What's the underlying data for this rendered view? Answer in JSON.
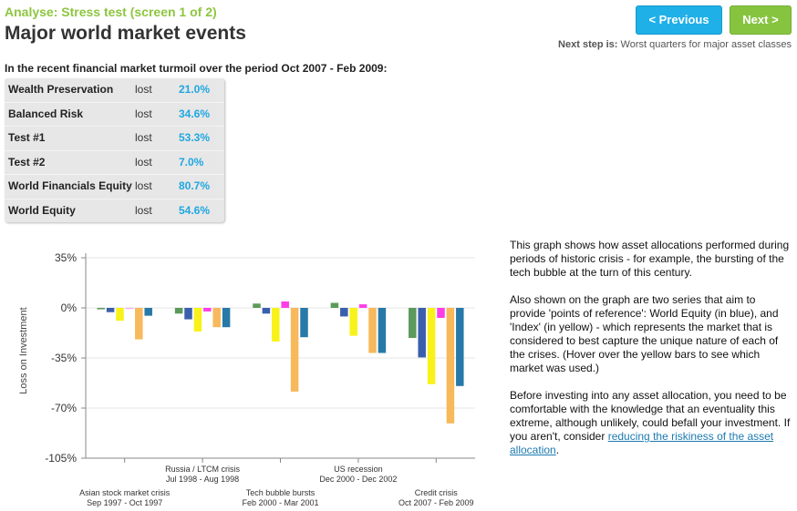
{
  "header": {
    "subtitle": "Analyse: Stress test (screen 1 of 2)",
    "title": "Major world market events"
  },
  "nav": {
    "prev_label": "< Previous",
    "next_label": "Next >",
    "next_step_label": "Next step is:",
    "next_step_value": "Worst quarters for major asset classes"
  },
  "intro": "In the recent financial market turmoil over the period Oct 2007 - Feb 2009:",
  "results": [
    {
      "name": "Wealth Preservation",
      "verb": "lost",
      "value": "21.0%"
    },
    {
      "name": "Balanced Risk",
      "verb": "lost",
      "value": "34.6%"
    },
    {
      "name": "Test #1",
      "verb": "lost",
      "value": "53.3%"
    },
    {
      "name": "Test #2",
      "verb": "lost",
      "value": "7.0%"
    },
    {
      "name": "World Financials Equity",
      "verb": "lost",
      "value": "80.7%"
    },
    {
      "name": "World Equity",
      "verb": "lost",
      "value": "54.6%"
    }
  ],
  "description": {
    "p1": "This graph shows how asset allocations performed during periods of historic crisis - for example, the bursting of the tech bubble at the turn of this century.",
    "p2": "Also shown on the graph are two series that aim to provide 'points of reference': World Equity (in blue), and 'Index' (in yellow) - which represents the market that is considered to best capture the unique nature of each of the crises. (Hover over the yellow bars to see which market was used.)",
    "p3_text": "Before investing into any asset allocation, you need to be comfortable with the knowledge that an eventuality this extreme, although unlikely, could befall your investment. If you aren't, consider",
    "p3_link": "reducing the riskiness of the asset allocation",
    "p3_end": "."
  },
  "chart_data": {
    "type": "bar",
    "ylabel": "Loss on Investment",
    "ylim": [
      -105,
      35
    ],
    "yticks": [
      35,
      0,
      -35,
      -70,
      -105
    ],
    "ytick_labels": [
      "35%",
      "0%",
      "-35%",
      "-70%",
      "-105%"
    ],
    "categories": [
      {
        "line1": "Asian stock market crisis",
        "line2": "Sep 1997 - Oct 1997"
      },
      {
        "line1": "Russia / LTCM crisis",
        "line2": "Jul 1998 - Aug 1998"
      },
      {
        "line1": "Tech bubble bursts",
        "line2": "Feb 2000 - Mar 2001"
      },
      {
        "line1": "US recession",
        "line2": "Dec 2000 - Dec 2002"
      },
      {
        "line1": "Credit crisis",
        "line2": "Oct 2007 - Feb 2009"
      }
    ],
    "series": [
      {
        "color": "#5b9a5a",
        "values": [
          -1,
          -4,
          3,
          3.5,
          -21
        ]
      },
      {
        "color": "#3a5fad",
        "values": [
          -3,
          -8,
          -4,
          -6,
          -34.6
        ]
      },
      {
        "color": "#f8f21a",
        "values": [
          -9,
          -16.5,
          -23.5,
          -19.5,
          -53.3
        ]
      },
      {
        "color": "#ff3ee8",
        "values": [
          0,
          -2.5,
          4.5,
          2.5,
          -7
        ]
      },
      {
        "color": "#f7b95c",
        "values": [
          -22,
          -13.5,
          -58.5,
          -31.5,
          -80.7
        ]
      },
      {
        "color": "#2779a8",
        "values": [
          -5.5,
          -13.5,
          -20.5,
          -31.5,
          -54.6
        ]
      }
    ]
  }
}
